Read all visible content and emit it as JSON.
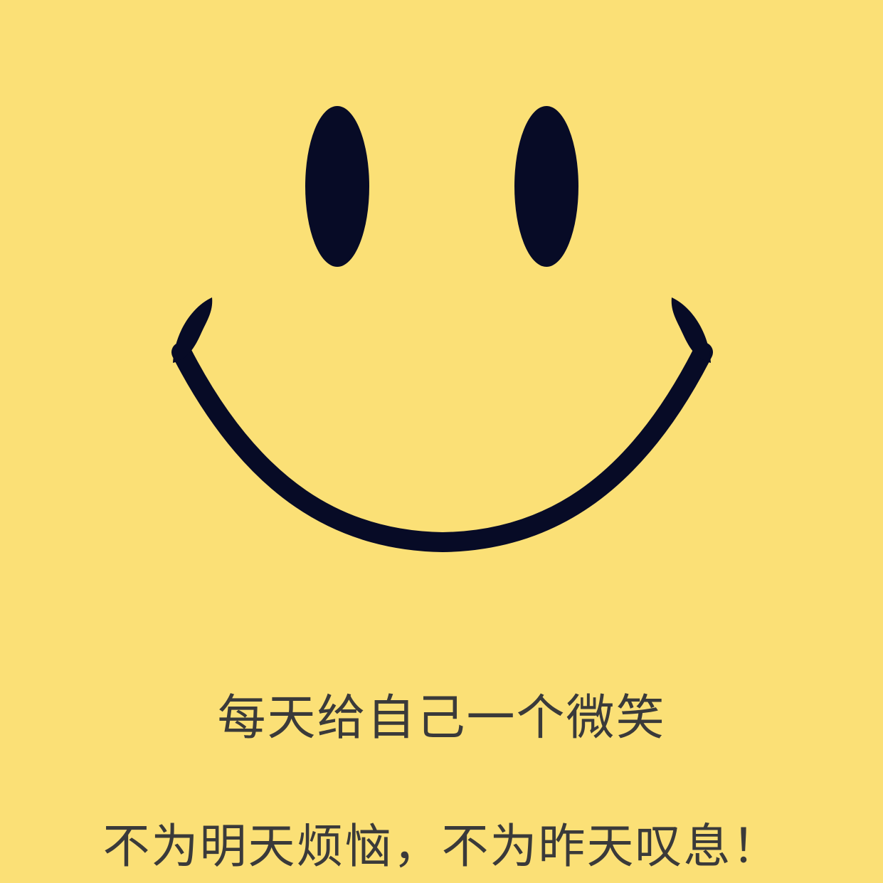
{
  "colors": {
    "background": "#fbe076",
    "face_features": "#070b26",
    "text": "#3a3a3a"
  },
  "illustration": {
    "left_eye": "eye-icon",
    "right_eye": "eye-icon",
    "mouth": "smile-icon"
  },
  "captions": {
    "line1": "每天给自己一个微笑",
    "line2": "不为明天烦恼，不为昨天叹息！"
  }
}
